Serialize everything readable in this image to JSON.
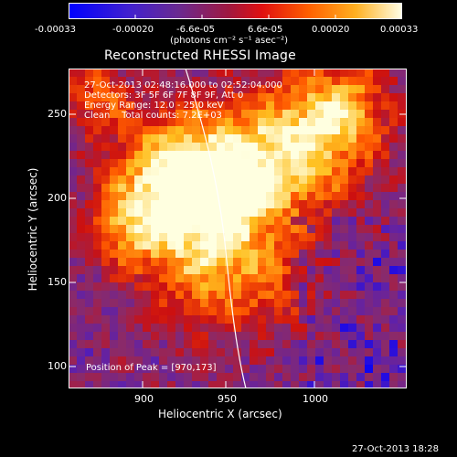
{
  "colorbar": {
    "tick_labels": [
      "-0.00033",
      "-0.00020",
      "-6.6e-05",
      "6.6e-05",
      "0.00020",
      "0.00033"
    ],
    "unit_label": "(photons cm⁻² s⁻¹ asec⁻²)",
    "range": [
      -0.00033,
      0.00033
    ],
    "colors": [
      "#0000ff",
      "#5a20b0",
      "#8a2a6a",
      "#cc1010",
      "#ff5a00",
      "#ffc020",
      "#ffffe0"
    ]
  },
  "plot": {
    "title": "Reconstructed RHESSI Image",
    "x_axis_label": "Heliocentric X (arcsec)",
    "y_axis_label": "Heliocentric Y (arcsec)",
    "x_ticks": [
      "900",
      "950",
      "1000"
    ],
    "y_ticks": [
      "100",
      "150",
      "200",
      "250"
    ],
    "x_range": [
      860,
      1045
    ],
    "y_range": [
      88,
      278
    ]
  },
  "annotations": {
    "time_range": "27-Oct-2013 02:48:16.000 to 02:52:04.000",
    "detectors": "Detectors: 3F 5F 6F 7F 8F 9F, Att 0",
    "energy_range": "Energy Range: 12.0 - 25.0 keV",
    "method_counts": "Clean    Total counts: 7.2E+03",
    "peak_position": "Position of Peak = [970,173]"
  },
  "footer": {
    "timestamp": "27-Oct-2013 18:28"
  }
}
